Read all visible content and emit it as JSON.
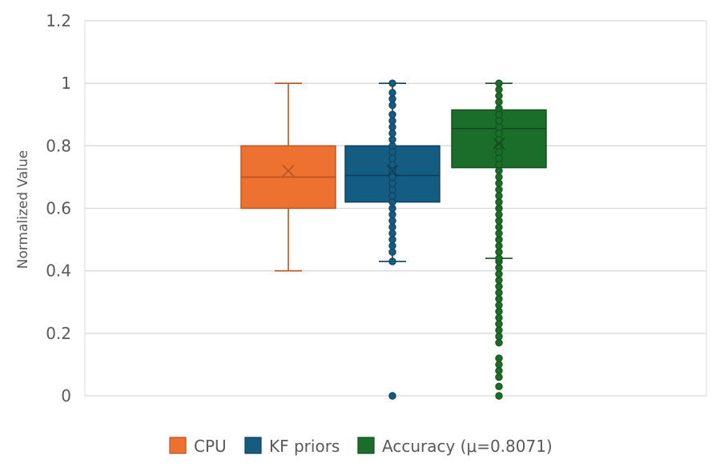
{
  "chart_data": {
    "type": "box",
    "ylabel": "Normalized Value",
    "xlabel": "",
    "ylim": [
      0,
      1.2
    ],
    "yticks": [
      0,
      0.2,
      0.4,
      0.6,
      0.8,
      1,
      1.2
    ],
    "ytick_labels": [
      "0",
      "0.2",
      "0.4",
      "0.6",
      "0.8",
      "1",
      "1.2"
    ],
    "grid": true,
    "legend_position": "bottom",
    "series": [
      {
        "name": "CPU",
        "color": "#ED7232",
        "stroke": "#B8521F",
        "min": 0.4,
        "q1": 0.6,
        "median": 0.7,
        "q3": 0.8,
        "max": 1.0,
        "mean": 0.72,
        "points": []
      },
      {
        "name": "KF priors",
        "color": "#145C82",
        "stroke": "#0D3F5C",
        "min": 0.43,
        "q1": 0.62,
        "median": 0.705,
        "q3": 0.8,
        "max": 1.0,
        "mean": 0.72,
        "points": [
          0,
          0.43,
          0.46,
          0.48,
          0.5,
          0.52,
          0.54,
          0.56,
          0.58,
          0.6,
          0.62,
          0.64,
          0.66,
          0.68,
          0.7,
          0.72,
          0.74,
          0.76,
          0.78,
          0.8,
          0.82,
          0.84,
          0.86,
          0.88,
          0.9,
          0.93,
          0.95,
          0.97,
          1.0
        ]
      },
      {
        "name": "Accuracy (μ=0.8071)",
        "color": "#1B6E2A",
        "stroke": "#114D1C",
        "min": 0.44,
        "q1": 0.73,
        "median": 0.855,
        "q3": 0.915,
        "max": 1.0,
        "mean": 0.8071,
        "points": [
          0,
          0.03,
          0.06,
          0.08,
          0.1,
          0.12,
          0.17,
          0.19,
          0.21,
          0.23,
          0.25,
          0.27,
          0.29,
          0.31,
          0.33,
          0.35,
          0.37,
          0.39,
          0.41,
          0.43,
          0.44,
          0.46,
          0.48,
          0.5,
          0.52,
          0.54,
          0.56,
          0.58,
          0.6,
          0.62,
          0.64,
          0.66,
          0.68,
          0.7,
          0.72,
          0.74,
          0.76,
          0.78,
          0.8,
          0.82,
          0.84,
          0.86,
          0.88,
          0.9,
          0.92,
          0.94,
          0.96,
          0.98,
          1.0
        ]
      }
    ]
  }
}
